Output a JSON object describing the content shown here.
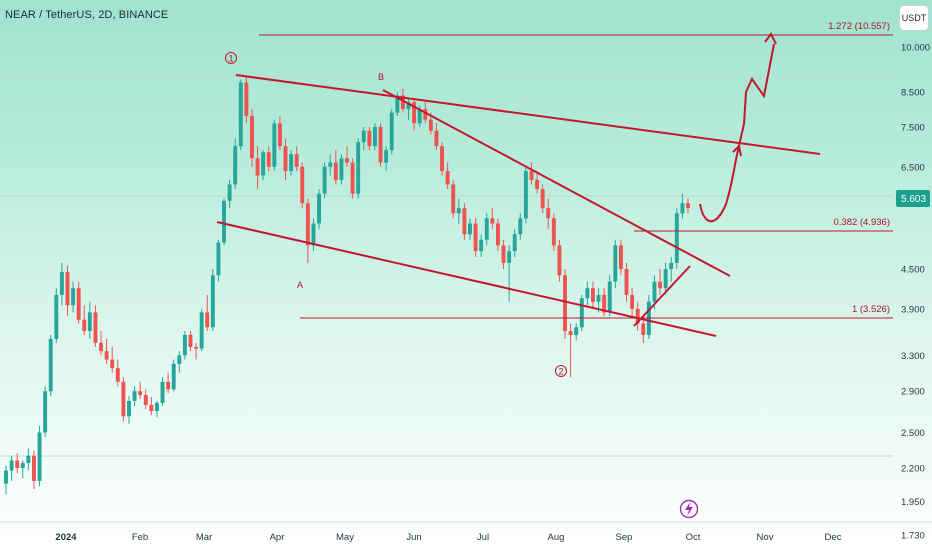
{
  "header": {
    "title": "NEAR / TetherUS, 2D, BINANCE",
    "unit": "USDT"
  },
  "chart_data": {
    "type": "candlestick",
    "title": "NEAR / TetherUS, 2D, BINANCE",
    "y_scale": "log",
    "ylim": [
      1.6,
      12.0
    ],
    "y_ticks": [
      "10.000",
      "8.500",
      "7.500",
      "6.500",
      "4.500",
      "3.900",
      "3.300",
      "2.900",
      "2.500",
      "2.200",
      "1.950",
      "1.730"
    ],
    "x_ticks": [
      "2024",
      "Feb",
      "Mar",
      "Apr",
      "May",
      "Jun",
      "Jul",
      "Aug",
      "Sep",
      "Oct",
      "Nov",
      "Dec"
    ],
    "last_price": {
      "value": 5.603,
      "label": "5.603"
    },
    "fib_levels": [
      {
        "ratio": "1.272",
        "price": 10.557,
        "label": "1.272 (10.557)"
      },
      {
        "ratio": "0.382",
        "price": 4.936,
        "label": "0.382 (4.936)"
      },
      {
        "ratio": "1",
        "price": 3.526,
        "label": "1 (3.526)"
      }
    ],
    "wave_labels": [
      "①",
      "B",
      "A",
      "②"
    ],
    "colors": {
      "up": "#26a69a",
      "down": "#ef5350",
      "drawing": "#c2182e"
    },
    "candles": [
      [
        2.08,
        2.22,
        2.0,
        2.18
      ],
      [
        2.18,
        2.3,
        2.1,
        2.26
      ],
      [
        2.26,
        2.32,
        2.16,
        2.2
      ],
      [
        2.2,
        2.26,
        2.12,
        2.24
      ],
      [
        2.24,
        2.36,
        2.18,
        2.3
      ],
      [
        2.3,
        2.34,
        2.04,
        2.1
      ],
      [
        2.1,
        2.56,
        2.06,
        2.5
      ],
      [
        2.5,
        2.95,
        2.46,
        2.9
      ],
      [
        2.9,
        3.55,
        2.85,
        3.5
      ],
      [
        3.5,
        4.2,
        3.45,
        4.1
      ],
      [
        4.1,
        4.6,
        3.95,
        4.45
      ],
      [
        4.45,
        4.55,
        3.8,
        3.95
      ],
      [
        3.95,
        4.3,
        3.85,
        4.2
      ],
      [
        4.2,
        4.3,
        3.7,
        3.75
      ],
      [
        3.75,
        3.95,
        3.55,
        3.6
      ],
      [
        3.6,
        4.0,
        3.5,
        3.85
      ],
      [
        3.85,
        3.95,
        3.4,
        3.45
      ],
      [
        3.45,
        3.6,
        3.3,
        3.35
      ],
      [
        3.35,
        3.5,
        3.2,
        3.25
      ],
      [
        3.25,
        3.4,
        3.1,
        3.15
      ],
      [
        3.15,
        3.25,
        2.95,
        3.0
      ],
      [
        3.0,
        3.05,
        2.6,
        2.65
      ],
      [
        2.65,
        2.85,
        2.58,
        2.8
      ],
      [
        2.8,
        2.95,
        2.75,
        2.9
      ],
      [
        2.9,
        3.0,
        2.82,
        2.86
      ],
      [
        2.86,
        2.92,
        2.72,
        2.76
      ],
      [
        2.76,
        2.84,
        2.66,
        2.7
      ],
      [
        2.7,
        2.8,
        2.64,
        2.78
      ],
      [
        2.78,
        3.05,
        2.75,
        3.0
      ],
      [
        3.0,
        3.1,
        2.88,
        2.92
      ],
      [
        2.92,
        3.25,
        2.9,
        3.2
      ],
      [
        3.2,
        3.35,
        3.1,
        3.3
      ],
      [
        3.3,
        3.6,
        3.25,
        3.55
      ],
      [
        3.55,
        3.6,
        3.35,
        3.4
      ],
      [
        3.4,
        3.45,
        3.25,
        3.38
      ],
      [
        3.38,
        3.9,
        3.35,
        3.85
      ],
      [
        3.85,
        4.1,
        3.6,
        3.65
      ],
      [
        3.65,
        4.5,
        3.6,
        4.4
      ],
      [
        4.4,
        5.0,
        4.3,
        4.95
      ],
      [
        4.95,
        5.8,
        4.9,
        5.75
      ],
      [
        5.75,
        6.2,
        5.6,
        6.1
      ],
      [
        6.1,
        7.2,
        6.0,
        7.0
      ],
      [
        7.0,
        8.9,
        6.9,
        8.8
      ],
      [
        8.8,
        9.0,
        7.6,
        7.8
      ],
      [
        7.8,
        8.0,
        6.5,
        6.7
      ],
      [
        6.7,
        7.0,
        6.0,
        6.3
      ],
      [
        6.3,
        6.9,
        6.2,
        6.85
      ],
      [
        6.85,
        7.0,
        6.4,
        6.5
      ],
      [
        6.5,
        7.7,
        6.4,
        7.6
      ],
      [
        7.6,
        7.8,
        6.9,
        7.0
      ],
      [
        7.0,
        7.2,
        6.2,
        6.4
      ],
      [
        6.4,
        6.9,
        6.3,
        6.8
      ],
      [
        6.8,
        7.0,
        6.4,
        6.5
      ],
      [
        6.5,
        6.6,
        5.6,
        5.7
      ],
      [
        5.7,
        5.8,
        4.6,
        4.9
      ],
      [
        4.9,
        5.4,
        4.8,
        5.3
      ],
      [
        5.3,
        6.0,
        5.2,
        5.9
      ],
      [
        5.9,
        6.6,
        5.8,
        6.5
      ],
      [
        6.5,
        6.8,
        6.3,
        6.6
      ],
      [
        6.6,
        6.9,
        6.1,
        6.2
      ],
      [
        6.2,
        6.8,
        6.1,
        6.7
      ],
      [
        6.7,
        7.0,
        6.5,
        6.6
      ],
      [
        6.6,
        6.7,
        5.8,
        5.9
      ],
      [
        5.9,
        7.2,
        5.8,
        7.1
      ],
      [
        7.1,
        7.5,
        6.9,
        7.4
      ],
      [
        7.4,
        7.5,
        6.9,
        7.0
      ],
      [
        7.0,
        7.6,
        6.9,
        7.5
      ],
      [
        7.5,
        7.6,
        6.5,
        6.6
      ],
      [
        6.6,
        7.0,
        6.4,
        6.9
      ],
      [
        6.9,
        8.0,
        6.8,
        7.9
      ],
      [
        7.9,
        8.5,
        7.8,
        8.4
      ],
      [
        8.4,
        8.6,
        7.9,
        8.0
      ],
      [
        8.0,
        8.3,
        7.7,
        8.2
      ],
      [
        8.2,
        8.3,
        7.4,
        7.6
      ],
      [
        7.6,
        8.1,
        7.5,
        8.0
      ],
      [
        8.0,
        8.2,
        7.6,
        7.7
      ],
      [
        7.7,
        7.9,
        7.3,
        7.4
      ],
      [
        7.4,
        7.6,
        6.9,
        7.0
      ],
      [
        7.0,
        7.1,
        6.3,
        6.4
      ],
      [
        6.4,
        6.6,
        6.0,
        6.1
      ],
      [
        6.1,
        6.2,
        5.4,
        5.5
      ],
      [
        5.5,
        5.8,
        5.3,
        5.6
      ],
      [
        5.6,
        5.7,
        5.0,
        5.1
      ],
      [
        5.1,
        5.4,
        5.0,
        5.3
      ],
      [
        5.3,
        5.4,
        4.7,
        4.8
      ],
      [
        4.8,
        5.1,
        4.7,
        5.0
      ],
      [
        5.0,
        5.5,
        4.9,
        5.4
      ],
      [
        5.4,
        5.6,
        5.2,
        5.3
      ],
      [
        5.3,
        5.4,
        4.8,
        4.9
      ],
      [
        4.9,
        5.0,
        4.5,
        4.6
      ],
      [
        4.6,
        4.9,
        4.0,
        4.8
      ],
      [
        4.8,
        5.2,
        4.7,
        5.1
      ],
      [
        5.1,
        5.5,
        5.0,
        5.4
      ],
      [
        5.4,
        6.5,
        5.3,
        6.4
      ],
      [
        6.4,
        6.6,
        6.1,
        6.2
      ],
      [
        6.2,
        6.4,
        5.9,
        6.0
      ],
      [
        6.0,
        6.1,
        5.5,
        5.6
      ],
      [
        5.6,
        5.8,
        5.2,
        5.4
      ],
      [
        5.4,
        5.5,
        4.8,
        4.9
      ],
      [
        4.9,
        5.0,
        4.3,
        4.4
      ],
      [
        4.4,
        4.5,
        3.5,
        3.6
      ],
      [
        3.6,
        3.7,
        3.05,
        3.55
      ],
      [
        3.55,
        3.7,
        3.48,
        3.65
      ],
      [
        3.65,
        4.1,
        3.6,
        4.05
      ],
      [
        4.05,
        4.3,
        3.95,
        4.2
      ],
      [
        4.2,
        4.3,
        3.9,
        4.0
      ],
      [
        4.0,
        4.2,
        3.85,
        4.1
      ],
      [
        4.1,
        4.2,
        3.8,
        3.85
      ],
      [
        3.85,
        4.4,
        3.8,
        4.3
      ],
      [
        4.3,
        5.0,
        4.2,
        4.9
      ],
      [
        4.9,
        5.0,
        4.4,
        4.5
      ],
      [
        4.5,
        4.6,
        4.0,
        4.1
      ],
      [
        4.1,
        4.2,
        3.8,
        3.9
      ],
      [
        3.9,
        4.0,
        3.6,
        3.7
      ],
      [
        3.7,
        3.8,
        3.45,
        3.55
      ],
      [
        3.55,
        4.1,
        3.5,
        4.0
      ],
      [
        4.0,
        4.4,
        3.9,
        4.3
      ],
      [
        4.3,
        4.5,
        4.1,
        4.2
      ],
      [
        4.2,
        4.6,
        4.1,
        4.5
      ],
      [
        4.5,
        4.7,
        4.3,
        4.6
      ],
      [
        4.6,
        5.6,
        4.5,
        5.5
      ],
      [
        5.5,
        5.9,
        5.4,
        5.7
      ],
      [
        5.7,
        5.8,
        5.5,
        5.603
      ]
    ]
  }
}
